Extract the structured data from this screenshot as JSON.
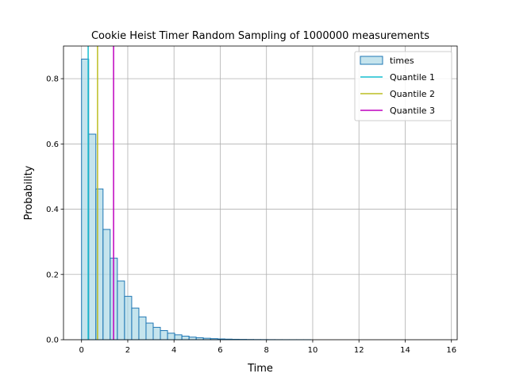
{
  "chart_data": {
    "type": "bar",
    "title": "Cookie Heist Timer Random Sampling of 1000000 measurements",
    "xlabel": "Time",
    "ylabel": "Probability",
    "xlim": [
      -0.78,
      16.25
    ],
    "ylim": [
      0,
      0.9
    ],
    "xticks": [
      0,
      2,
      4,
      6,
      8,
      10,
      12,
      14,
      16
    ],
    "yticks": [
      0.0,
      0.2,
      0.4,
      0.6,
      0.8
    ],
    "ytick_labels": [
      "0.0",
      "0.2",
      "0.4",
      "0.6",
      "0.8"
    ],
    "grid": true,
    "legend_position": "top-right",
    "bin_width": 0.31,
    "bin_start": 0.0,
    "series": [
      {
        "name": "times",
        "kind": "histogram",
        "fill": "#add8e6",
        "edge": "#1f77b4",
        "values": [
          0.86,
          0.63,
          0.462,
          0.338,
          0.25,
          0.18,
          0.133,
          0.097,
          0.07,
          0.051,
          0.038,
          0.028,
          0.02,
          0.015,
          0.011,
          0.008,
          0.006,
          0.0045,
          0.0033,
          0.0024,
          0.0018,
          0.0013,
          0.001,
          0.0007,
          0.0005,
          0.0004,
          0.0003,
          0.0002,
          0.00015,
          0.0001,
          0.0001,
          0.0001
        ]
      },
      {
        "name": "Quantile 1",
        "kind": "vline",
        "x": 0.287,
        "color": "#17becf"
      },
      {
        "name": "Quantile 2",
        "kind": "vline",
        "x": 0.693,
        "color": "#bcbd22"
      },
      {
        "name": "Quantile 3",
        "kind": "vline",
        "x": 1.386,
        "color": "#bf00bf"
      }
    ]
  }
}
